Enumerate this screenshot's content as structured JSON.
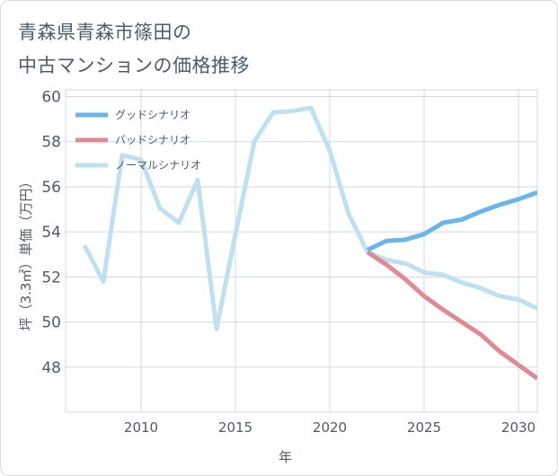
{
  "title_lines": [
    "青森県青森市篠田の",
    "中古マンションの価格推移"
  ],
  "chart_data": {
    "type": "line",
    "title": "青森県青森市篠田の中古マンションの価格推移",
    "xlabel": "年",
    "ylabel": "坪（3.3㎡）単価（万円）",
    "xlim": [
      2006,
      2031
    ],
    "ylim": [
      46,
      60.3
    ],
    "xticks": [
      2010,
      2015,
      2020,
      2025,
      2030
    ],
    "yticks": [
      48,
      50,
      52,
      54,
      56,
      58,
      60
    ],
    "grid": true,
    "legend_position": "top-left",
    "series": [
      {
        "name": "グッドシナリオ",
        "color": "#6cb4ea",
        "x": [
          2022,
          2023,
          2024,
          2025,
          2026,
          2027,
          2028,
          2029,
          2030,
          2031
        ],
        "y": [
          53.2,
          53.6,
          53.65,
          53.9,
          54.4,
          54.55,
          54.9,
          55.2,
          55.45,
          55.75
        ]
      },
      {
        "name": "バッドシナリオ",
        "color": "#df8a96",
        "x": [
          2022,
          2023,
          2024,
          2025,
          2026,
          2027,
          2028,
          2029,
          2030,
          2031
        ],
        "y": [
          53.1,
          52.55,
          51.9,
          51.15,
          50.55,
          50.0,
          49.45,
          48.7,
          48.1,
          47.5
        ]
      },
      {
        "name": "ノーマルシナリオ",
        "color": "#bfe0f0",
        "x": [
          2007,
          2008,
          2009,
          2010,
          2011,
          2012,
          2013,
          2014,
          2015,
          2016,
          2017,
          2018,
          2019,
          2020,
          2021,
          2022,
          2023,
          2024,
          2025,
          2026,
          2027,
          2028,
          2029,
          2030,
          2031
        ],
        "y": [
          53.4,
          51.8,
          57.4,
          57.2,
          55.05,
          54.4,
          56.3,
          49.7,
          53.9,
          58.0,
          59.3,
          59.35,
          59.5,
          57.6,
          54.8,
          53.1,
          52.75,
          52.6,
          52.2,
          52.1,
          51.75,
          51.5,
          51.15,
          51.0,
          50.6
        ]
      }
    ]
  }
}
